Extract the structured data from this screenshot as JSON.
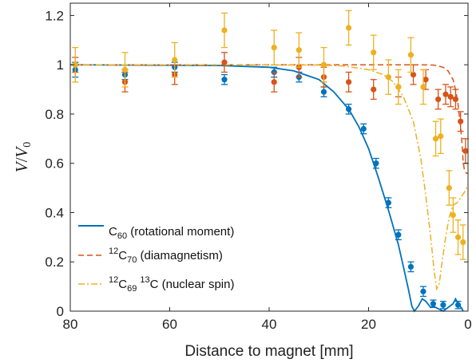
{
  "chart_data": {
    "type": "scatter",
    "xlabel": "Distance to magnet [mm]",
    "ylabel": {
      "main": "V",
      "slash": "/",
      "sub_base": "V",
      "sub": "0"
    },
    "xlim": [
      80,
      0
    ],
    "ylim": [
      0,
      1.25
    ],
    "x_ticks": [
      "80",
      "60",
      "40",
      "20",
      "0"
    ],
    "y_ticks": [
      "0",
      "0.2",
      "0.4",
      "0.6",
      "0.8",
      "1",
      "1.2"
    ],
    "grid": false,
    "legend_position": "bottom-left",
    "legend": [
      {
        "pre_sup": "",
        "base": "C",
        "sub": "60",
        "tail_sup": "",
        "tail": "",
        "desc": " (rotational moment)",
        "color": "#0072BD",
        "dash": "solid"
      },
      {
        "pre_sup": "12",
        "base": "C",
        "sub": "70",
        "tail_sup": "",
        "tail": "",
        "desc": " (diamagnetism)",
        "color": "#D95319",
        "dash": "dashed"
      },
      {
        "pre_sup": "12",
        "base": "C",
        "sub": "69",
        "tail_sup": "13",
        "tail": "C",
        "desc": " (nuclear spin)",
        "color": "#EDB120",
        "dash": "dashdot"
      }
    ],
    "series": [
      {
        "color": "#0072BD",
        "points": [
          {
            "x": 79,
            "y": 0.98,
            "err": 0.03
          },
          {
            "x": 69,
            "y": 0.96,
            "err": 0.02
          },
          {
            "x": 59,
            "y": 0.99,
            "err": 0.02
          },
          {
            "x": 49,
            "y": 0.94,
            "err": 0.02
          },
          {
            "x": 39,
            "y": 0.97,
            "err": 0.02
          },
          {
            "x": 34,
            "y": 0.95,
            "err": 0.02
          },
          {
            "x": 29,
            "y": 0.89,
            "err": 0.02
          },
          {
            "x": 24,
            "y": 0.82,
            "err": 0.02
          },
          {
            "x": 21,
            "y": 0.74,
            "err": 0.02
          },
          {
            "x": 18.5,
            "y": 0.6,
            "err": 0.02
          },
          {
            "x": 16,
            "y": 0.44,
            "err": 0.02
          },
          {
            "x": 14,
            "y": 0.31,
            "err": 0.02
          },
          {
            "x": 11.5,
            "y": 0.18,
            "err": 0.02
          },
          {
            "x": 9,
            "y": 0.08,
            "err": 0.02
          },
          {
            "x": 7,
            "y": 0.03,
            "err": 0.015
          },
          {
            "x": 5,
            "y": 0.025,
            "err": 0.015
          },
          {
            "x": 2,
            "y": 0.025,
            "err": 0.015
          }
        ],
        "curve": [
          [
            80,
            1.0
          ],
          [
            50,
            0.997
          ],
          [
            40,
            0.99
          ],
          [
            35,
            0.975
          ],
          [
            30,
            0.94
          ],
          [
            27,
            0.89
          ],
          [
            24,
            0.82
          ],
          [
            22,
            0.75
          ],
          [
            20,
            0.66
          ],
          [
            18,
            0.54
          ],
          [
            16,
            0.41
          ],
          [
            14,
            0.27
          ],
          [
            13,
            0.18
          ],
          [
            12,
            0.09
          ],
          [
            11.3,
            0.02
          ],
          [
            10.8,
            0.0
          ],
          [
            10,
            0.02
          ],
          [
            9.2,
            0.05
          ],
          [
            8.5,
            0.04
          ],
          [
            7.5,
            0.015
          ],
          [
            7,
            0.02
          ],
          [
            6,
            0.01
          ],
          [
            5,
            0.0
          ],
          [
            4,
            0.015
          ],
          [
            3,
            0.03
          ],
          [
            2.5,
            0.05
          ],
          [
            2,
            0.03
          ],
          [
            1.2,
            0.01
          ],
          [
            1,
            0.0
          ]
        ]
      },
      {
        "color": "#D95319",
        "points": [
          {
            "x": 79,
            "y": 1.0,
            "err": 0.03
          },
          {
            "x": 69,
            "y": 0.93,
            "err": 0.04
          },
          {
            "x": 59,
            "y": 0.96,
            "err": 0.04
          },
          {
            "x": 49,
            "y": 1.01,
            "err": 0.04
          },
          {
            "x": 39,
            "y": 0.93,
            "err": 0.04
          },
          {
            "x": 34,
            "y": 0.99,
            "err": 0.04
          },
          {
            "x": 29,
            "y": 0.95,
            "err": 0.04
          },
          {
            "x": 24,
            "y": 0.93,
            "err": 0.04
          },
          {
            "x": 19,
            "y": 0.9,
            "err": 0.04
          },
          {
            "x": 14,
            "y": 0.91,
            "err": 0.04
          },
          {
            "x": 11,
            "y": 0.96,
            "err": 0.04
          },
          {
            "x": 8.5,
            "y": 0.94,
            "err": 0.04
          },
          {
            "x": 6,
            "y": 0.86,
            "err": 0.04
          },
          {
            "x": 4.5,
            "y": 0.88,
            "err": 0.04
          },
          {
            "x": 3.5,
            "y": 0.87,
            "err": 0.04
          },
          {
            "x": 2.5,
            "y": 0.86,
            "err": 0.04
          },
          {
            "x": 1.5,
            "y": 0.77,
            "err": 0.04
          },
          {
            "x": 0.5,
            "y": 0.65,
            "err": 0.05
          }
        ],
        "curve": [
          [
            80,
            1.0
          ],
          [
            10,
            1.0
          ],
          [
            7,
            0.999
          ],
          [
            5,
            0.99
          ],
          [
            4,
            0.975
          ],
          [
            3,
            0.94
          ],
          [
            2.5,
            0.9
          ],
          [
            2,
            0.84
          ],
          [
            1.5,
            0.75
          ],
          [
            1.2,
            0.68
          ],
          [
            1,
            0.61
          ],
          [
            0.7,
            0.57
          ],
          [
            0.3,
            0.56
          ],
          [
            0,
            0.56
          ]
        ]
      },
      {
        "color": "#EDB120",
        "points": [
          {
            "x": 79,
            "y": 1.0,
            "err": 0.07
          },
          {
            "x": 69,
            "y": 0.98,
            "err": 0.07
          },
          {
            "x": 59,
            "y": 1.02,
            "err": 0.07
          },
          {
            "x": 49,
            "y": 1.14,
            "err": 0.07
          },
          {
            "x": 39,
            "y": 1.07,
            "err": 0.07
          },
          {
            "x": 34,
            "y": 1.06,
            "err": 0.07
          },
          {
            "x": 29,
            "y": 1.0,
            "err": 0.07
          },
          {
            "x": 24,
            "y": 1.15,
            "err": 0.07
          },
          {
            "x": 19,
            "y": 1.05,
            "err": 0.07
          },
          {
            "x": 16,
            "y": 0.95,
            "err": 0.07
          },
          {
            "x": 14,
            "y": 0.91,
            "err": 0.07
          },
          {
            "x": 11.5,
            "y": 1.04,
            "err": 0.07
          },
          {
            "x": 9,
            "y": 0.91,
            "err": 0.07
          },
          {
            "x": 6.5,
            "y": 0.7,
            "err": 0.07
          },
          {
            "x": 5.5,
            "y": 0.71,
            "err": 0.07
          },
          {
            "x": 3.8,
            "y": 0.5,
            "err": 0.07
          },
          {
            "x": 3,
            "y": 0.39,
            "err": 0.07
          },
          {
            "x": 2,
            "y": 0.3,
            "err": 0.07
          },
          {
            "x": 1,
            "y": 0.28,
            "err": 0.07
          }
        ],
        "curve": [
          [
            80,
            1.0
          ],
          [
            30,
            0.999
          ],
          [
            25,
            0.995
          ],
          [
            20,
            0.98
          ],
          [
            17,
            0.96
          ],
          [
            15,
            0.93
          ],
          [
            13,
            0.87
          ],
          [
            11,
            0.77
          ],
          [
            9.5,
            0.62
          ],
          [
            8.5,
            0.47
          ],
          [
            7.5,
            0.3
          ],
          [
            6.8,
            0.16
          ],
          [
            6.3,
            0.09
          ],
          [
            5.8,
            0.11
          ],
          [
            5.2,
            0.2
          ],
          [
            4.5,
            0.3
          ],
          [
            3.8,
            0.38
          ],
          [
            3,
            0.43
          ],
          [
            2.2,
            0.44
          ],
          [
            1.5,
            0.46
          ],
          [
            0.8,
            0.48
          ],
          [
            0.3,
            0.5
          ],
          [
            0,
            0.5
          ]
        ]
      }
    ]
  }
}
